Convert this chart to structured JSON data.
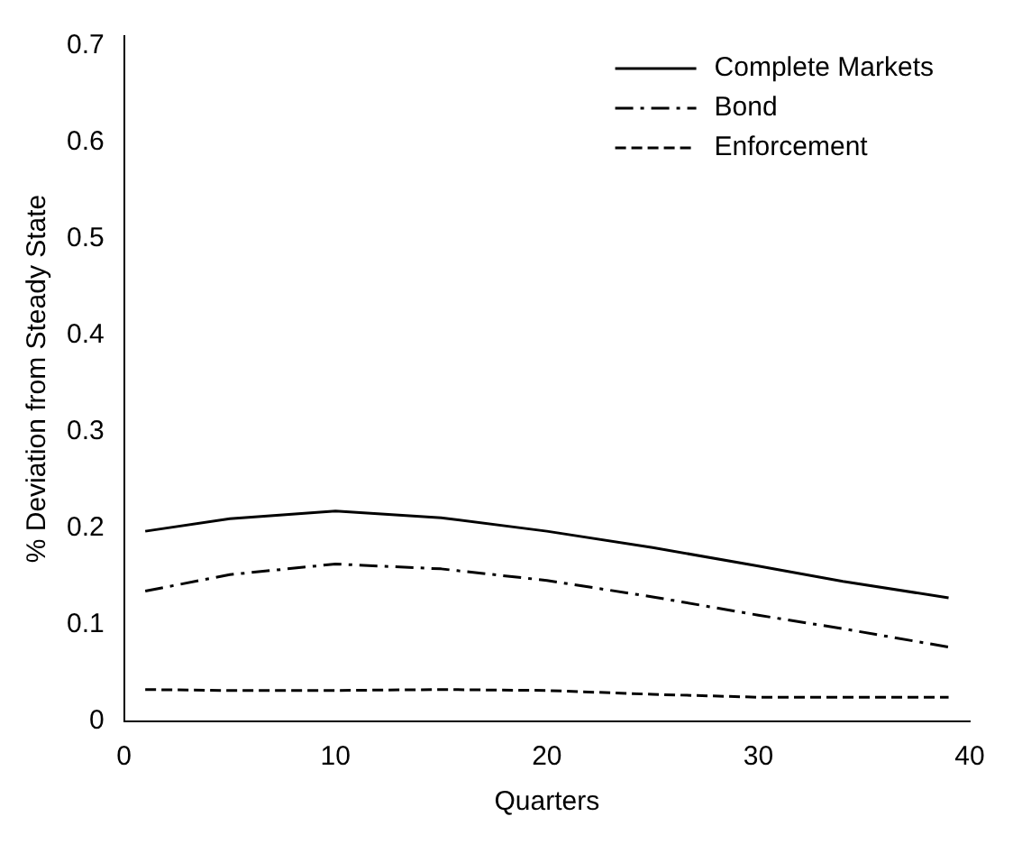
{
  "chart_data": {
    "type": "line",
    "xlabel": "Quarters",
    "ylabel": "% Deviation from Steady State",
    "x": [
      1,
      5,
      10,
      15,
      20,
      25,
      30,
      34,
      39
    ],
    "series": [
      {
        "name": "Complete Markets",
        "color": "#000000",
        "line_style": "solid",
        "values": [
          0.197,
          0.21,
          0.218,
          0.211,
          0.197,
          0.18,
          0.161,
          0.145,
          0.128
        ]
      },
      {
        "name": "Bond",
        "color": "#000000",
        "line_style": "dashdot",
        "values": [
          0.135,
          0.152,
          0.163,
          0.158,
          0.146,
          0.129,
          0.11,
          0.096,
          0.077
        ]
      },
      {
        "name": "Enforcement",
        "color": "#000000",
        "line_style": "dashed",
        "values": [
          0.033,
          0.032,
          0.032,
          0.033,
          0.032,
          0.028,
          0.025,
          0.025,
          0.025
        ]
      }
    ],
    "xlim": [
      0,
      40
    ],
    "xticks": [
      0,
      10,
      20,
      30,
      40
    ],
    "ylim": [
      0,
      0.71
    ],
    "yticks": [
      0,
      0.1,
      0.2,
      0.3,
      0.4,
      0.5,
      0.6,
      0.7
    ],
    "grid": false,
    "legend": "top right"
  }
}
